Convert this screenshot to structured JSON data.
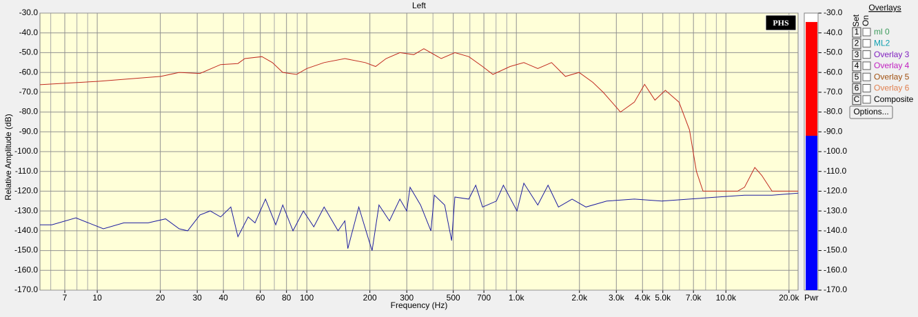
{
  "chart_data": {
    "type": "line",
    "title": "Left",
    "x_label": "Frequency (Hz)",
    "y_label": "Relative Amplitude (dB)",
    "xlog": true,
    "xlim": [
      5.33,
      22100
    ],
    "ylim": [
      -170,
      -30
    ],
    "xticks": [
      7,
      10,
      20,
      30,
      40,
      60,
      80,
      100,
      200,
      300,
      500,
      700,
      {
        "value": 1000,
        "label": "1.0k"
      },
      {
        "value": 2000,
        "label": "2.0k"
      },
      {
        "value": 3000,
        "label": "3.0k"
      },
      {
        "value": 4000,
        "label": "4.0k"
      },
      {
        "value": 5000,
        "label": "5.0k"
      },
      {
        "value": 7000,
        "label": "7.0k"
      },
      {
        "value": 10000,
        "label": "10.0k"
      },
      {
        "value": 20000,
        "label": "20.0k"
      }
    ],
    "xminor_ticks": [
      6,
      8,
      9,
      50,
      70,
      90,
      400,
      600,
      800,
      900,
      6000,
      8000,
      9000
    ],
    "yticks": [
      {
        "value": -30,
        "label": "-30.0"
      },
      {
        "value": -40,
        "label": "-40.0"
      },
      {
        "value": -50,
        "label": "-50.0"
      },
      {
        "value": -60,
        "label": "-60.0"
      },
      {
        "value": -70,
        "label": "-70.0"
      },
      {
        "value": -80,
        "label": "-80.0"
      },
      {
        "value": -90,
        "label": "-90.0"
      },
      {
        "value": -100,
        "label": "-100.0"
      },
      {
        "value": -110,
        "label": "-110.0"
      },
      {
        "value": -120,
        "label": "-120.0"
      },
      {
        "value": -130,
        "label": "-130.0"
      },
      {
        "value": -140,
        "label": "-140.0"
      },
      {
        "value": -150,
        "label": "-150.0"
      },
      {
        "value": -160,
        "label": "-160.0"
      },
      {
        "value": -170,
        "label": "-170.0"
      }
    ],
    "grid": true,
    "series": [
      {
        "color": "#c0281e",
        "x": [
          5.33,
          10,
          20.1,
          24.6,
          30.9,
          38.8,
          46.9,
          50.6,
          61.1,
          68.5,
          76.8,
          89.3,
          100,
          121,
          152,
          190,
          213,
          239,
          278,
          324,
          362,
          438,
          509,
          593,
          690,
          773,
          933,
          1086,
          1265,
          1472,
          1714,
          1991,
          2317,
          2596,
          2911,
          3140,
          3656,
          4093,
          4585,
          5140,
          5970,
          6700,
          7230,
          7780,
          11370,
          12270,
          13740,
          14830,
          16600,
          22130
        ],
        "values": [
          -66.2,
          -64.5,
          -62,
          -60,
          -60.5,
          -56,
          -55.5,
          -53,
          -52,
          -55,
          -60,
          -61,
          -58,
          -55,
          -53,
          -55,
          -57,
          -53,
          -50,
          -51,
          -48,
          -53,
          -50,
          -52,
          -57,
          -61,
          -57,
          -55,
          -58,
          -55,
          -62,
          -60,
          -65,
          -70,
          -76,
          -80,
          -75,
          -66,
          -74,
          -69,
          -75,
          -89,
          -110,
          -120,
          -120,
          -118,
          -108,
          -112,
          -120,
          -120
        ]
      },
      {
        "color": "#1c1ca0",
        "x": [
          5.33,
          6.07,
          7.91,
          10.7,
          13.4,
          17.5,
          21.2,
          24.6,
          27.0,
          30.9,
          34.6,
          38.8,
          43.4,
          46.9,
          52.5,
          56.6,
          63.5,
          71.1,
          76.8,
          85.9,
          96.3,
          108,
          121,
          141,
          152,
          157,
          177,
          198,
          205,
          221,
          248,
          278,
          300,
          311,
          349,
          391,
          406,
          455,
          491,
          509,
          593,
          640,
          690,
          803,
          867,
          1007,
          1086,
          1265,
          1416,
          1588,
          1845,
          2148,
          2698,
          3656,
          4943,
          6700,
          9057,
          12270,
          16600,
          22130
        ],
        "values": [
          -137,
          -137,
          -133.5,
          -139,
          -136,
          -136,
          -134,
          -139,
          -140,
          -132,
          -130,
          -133,
          -128,
          -143,
          -133,
          -136,
          -124,
          -137,
          -127,
          -140,
          -130,
          -138,
          -128,
          -140,
          -135,
          -149,
          -128,
          -145,
          -150,
          -127,
          -135,
          -124,
          -130,
          -118,
          -127,
          -140,
          -122,
          -127,
          -145,
          -123,
          -124,
          -117,
          -128,
          -125,
          -117,
          -130,
          -116,
          -127,
          -117,
          -128,
          -124,
          -128,
          -125,
          -124,
          -125,
          -124,
          -123,
          -122,
          -122,
          -121
        ]
      }
    ],
    "badge": "PHS",
    "meter": {
      "label": "Pwr",
      "peak": -34.5,
      "rms": -92,
      "peak_color": "#ff0000",
      "rms_color": "#0000ff"
    },
    "overlays": {
      "title": "Overlays",
      "set_header": "Set",
      "on_header": "On",
      "rows": [
        {
          "key": "1",
          "label": "ml 0",
          "color": "#3a9a5a"
        },
        {
          "key": "2",
          "label": "ML2",
          "color": "#10a0b0"
        },
        {
          "key": "3",
          "label": "Overlay 3",
          "color": "#8020c0"
        },
        {
          "key": "4",
          "label": "Overlay 4",
          "color": "#c020c0"
        },
        {
          "key": "5",
          "label": "Overlay 5",
          "color": "#a05010"
        },
        {
          "key": "6",
          "label": "Overlay 6",
          "color": "#e08050"
        },
        {
          "key": "C",
          "label": "Composite",
          "color": "#000000"
        }
      ],
      "button": "Options..."
    }
  }
}
